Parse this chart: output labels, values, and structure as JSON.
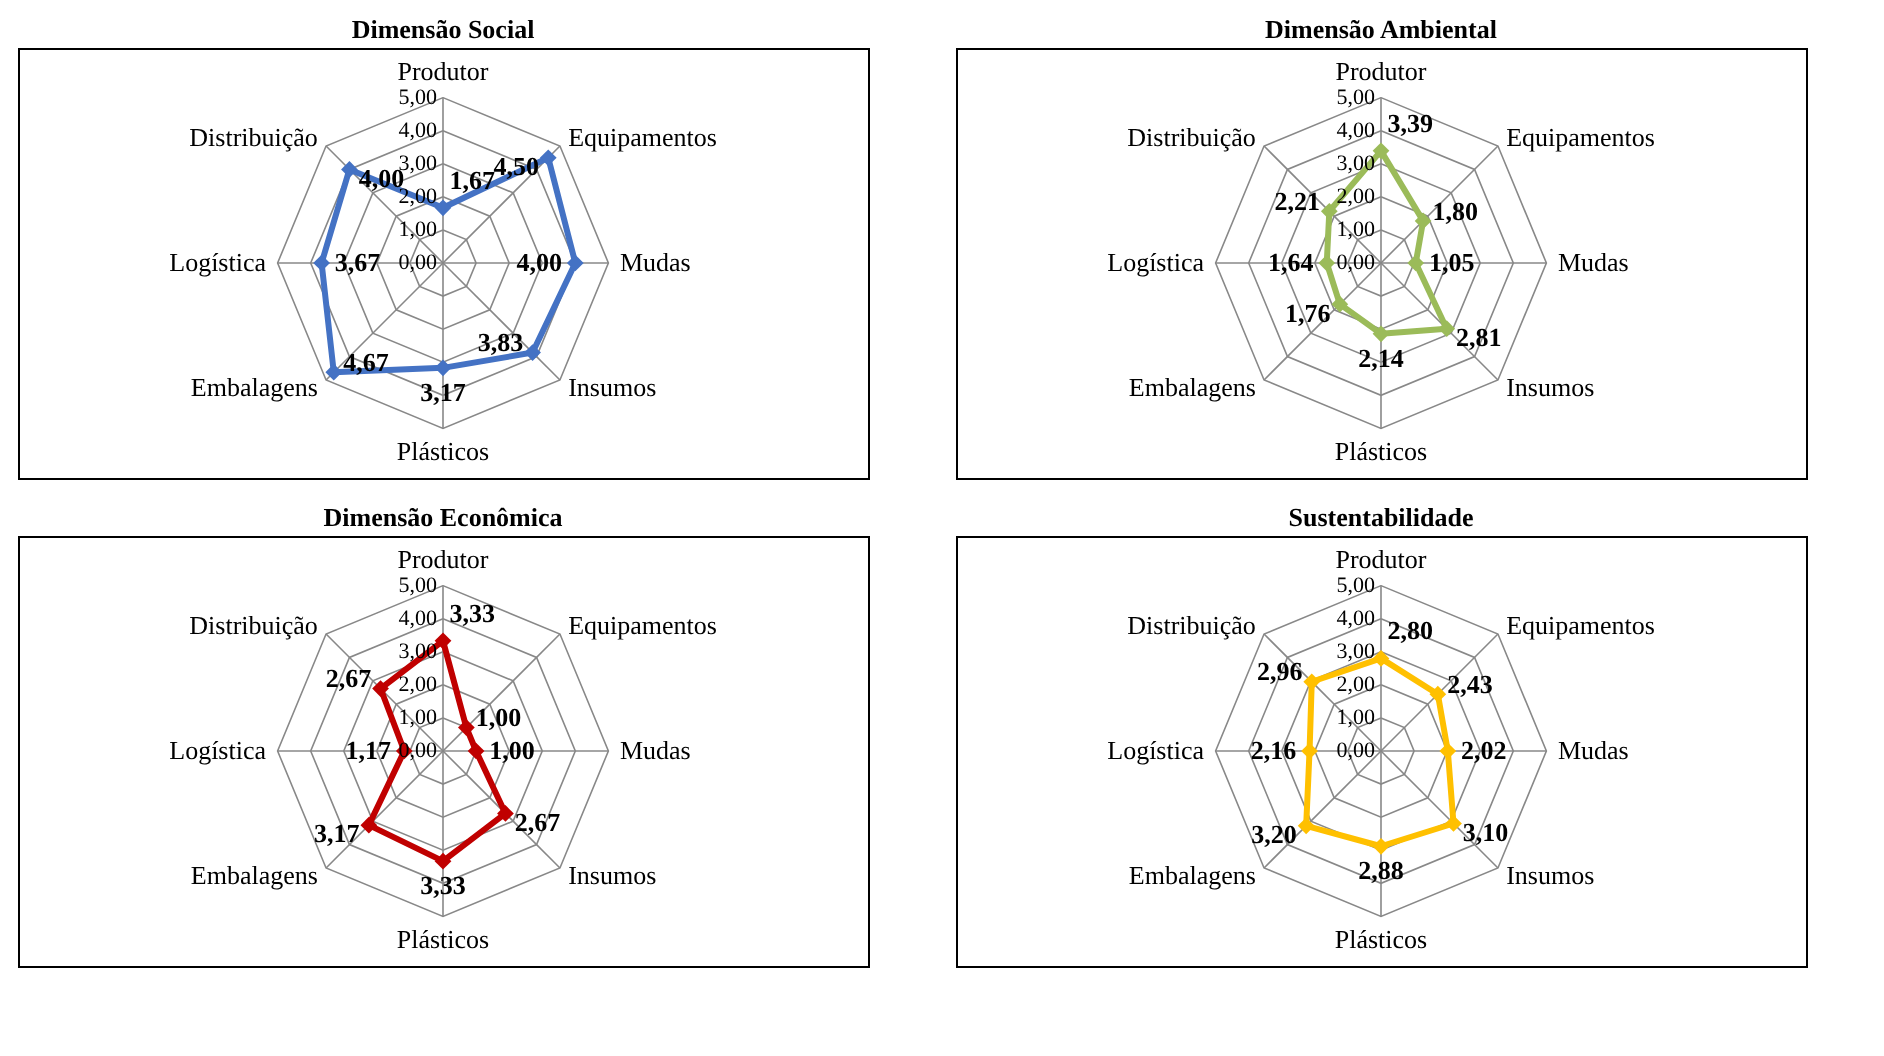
{
  "chart_data": [
    {
      "type": "radar",
      "title": "Dimensão Social",
      "categories": [
        "Produtor",
        "Equipamentos",
        "Mudas",
        "Insumos",
        "Plásticos",
        "Embalagens",
        "Logística",
        "Distribuição"
      ],
      "ylim": [
        0,
        5
      ],
      "yticks": [
        {
          "value": 0,
          "label": "0,00"
        },
        {
          "value": 1,
          "label": "1,00"
        },
        {
          "value": 2,
          "label": "2,00"
        },
        {
          "value": 3,
          "label": "3,00"
        },
        {
          "value": 4,
          "label": "4,00"
        },
        {
          "value": 5,
          "label": "5,00"
        }
      ],
      "grid": true,
      "marker": "diamond",
      "series": [
        {
          "color": "#4472c4",
          "values": [
            1.67,
            4.5,
            4.0,
            3.83,
            3.17,
            4.67,
            3.67,
            4.0
          ],
          "value_labels": [
            "1,67",
            "4,50",
            "4,00",
            "3,83",
            "3,17",
            "4,67",
            "3,67",
            "4,00"
          ]
        }
      ]
    },
    {
      "type": "radar",
      "title": "Dimensão Ambiental",
      "categories": [
        "Produtor",
        "Equipamentos",
        "Mudas",
        "Insumos",
        "Plásticos",
        "Embalagens",
        "Logística",
        "Distribuição"
      ],
      "ylim": [
        0,
        5
      ],
      "yticks": [
        {
          "value": 0,
          "label": "0,00"
        },
        {
          "value": 1,
          "label": "1,00"
        },
        {
          "value": 2,
          "label": "2,00"
        },
        {
          "value": 3,
          "label": "3,00"
        },
        {
          "value": 4,
          "label": "4,00"
        },
        {
          "value": 5,
          "label": "5,00"
        }
      ],
      "grid": true,
      "marker": "diamond",
      "series": [
        {
          "color": "#9bbb59",
          "values": [
            3.39,
            1.8,
            1.05,
            2.81,
            2.14,
            1.76,
            1.64,
            2.21
          ],
          "value_labels": [
            "3,39",
            "1,80",
            "1,05",
            "2,81",
            "2,14",
            "1,76",
            "1,64",
            "2,21"
          ]
        }
      ]
    },
    {
      "type": "radar",
      "title": "Dimensão Econômica",
      "categories": [
        "Produtor",
        "Equipamentos",
        "Mudas",
        "Insumos",
        "Plásticos",
        "Embalagens",
        "Logística",
        "Distribuição"
      ],
      "ylim": [
        0,
        5
      ],
      "yticks": [
        {
          "value": 0,
          "label": "0,00"
        },
        {
          "value": 1,
          "label": "1,00"
        },
        {
          "value": 2,
          "label": "2,00"
        },
        {
          "value": 3,
          "label": "3,00"
        },
        {
          "value": 4,
          "label": "4,00"
        },
        {
          "value": 5,
          "label": "5,00"
        }
      ],
      "grid": true,
      "marker": "diamond",
      "series": [
        {
          "color": "#c00000",
          "values": [
            3.33,
            1.0,
            1.0,
            2.67,
            3.33,
            3.17,
            1.17,
            2.67
          ],
          "value_labels": [
            "3,33",
            "1,00",
            "1,00",
            "2,67",
            "3,33",
            "3,17",
            "1,17",
            "2,67"
          ]
        }
      ]
    },
    {
      "type": "radar",
      "title": "Sustentabilidade",
      "categories": [
        "Produtor",
        "Equipamentos",
        "Mudas",
        "Insumos",
        "Plásticos",
        "Embalagens",
        "Logística",
        "Distribuição"
      ],
      "ylim": [
        0,
        5
      ],
      "yticks": [
        {
          "value": 0,
          "label": "0,00"
        },
        {
          "value": 1,
          "label": "1,00"
        },
        {
          "value": 2,
          "label": "2,00"
        },
        {
          "value": 3,
          "label": "3,00"
        },
        {
          "value": 4,
          "label": "4,00"
        },
        {
          "value": 5,
          "label": "5,00"
        }
      ],
      "grid": true,
      "marker": "diamond",
      "series": [
        {
          "color": "#ffc000",
          "values": [
            2.8,
            2.43,
            2.02,
            3.1,
            2.88,
            3.2,
            2.16,
            2.96
          ],
          "value_labels": [
            "2,80",
            "2,43",
            "2,02",
            "3,10",
            "2,88",
            "3,20",
            "2,16",
            "2,96"
          ]
        }
      ]
    }
  ]
}
